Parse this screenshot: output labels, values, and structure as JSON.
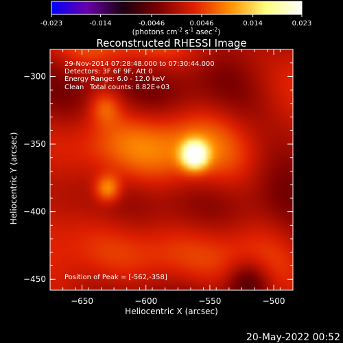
{
  "colorbar": {
    "tick_labels": [
      "-0.023",
      "-0.014",
      "-0.0046",
      "0.0046",
      "0.014",
      "0.023"
    ],
    "tick_values": [
      -0.023,
      -0.014,
      -0.0046,
      0.0046,
      0.014,
      0.023
    ],
    "range": [
      -0.023,
      0.023
    ],
    "units_main": "(photons cm",
    "units_exp1": "-2",
    "units_mid": " s",
    "units_exp2": "-1",
    "units_end": " asec",
    "units_exp3": "-2",
    "units_close": ")",
    "stops": [
      "#0000ff",
      "#6a00a8",
      "#1a0010",
      "#7a0000",
      "#e02000",
      "#ff9000",
      "#ffff80",
      "#ffffff"
    ]
  },
  "plot": {
    "title": "Reconstructed RHESSI Image",
    "xlabel": "Heliocentric X (arcsec)",
    "ylabel": "Heliocentric Y (arcsec)",
    "xlim": [
      -675,
      -485
    ],
    "ylim": [
      -458,
      -280
    ],
    "x_ticks": [
      -650,
      -600,
      -550,
      -500
    ],
    "x_tick_labels": [
      "−650",
      "−600",
      "−550",
      "−500"
    ],
    "y_ticks": [
      -300,
      -350,
      -400,
      -450
    ],
    "y_tick_labels": [
      "−300",
      "−350",
      "−400",
      "−450"
    ]
  },
  "annotations": {
    "time_range": "29-Nov-2014 07:28:48.000 to 07:30:44.000",
    "detectors": "Detectors: 3F 6F 9F, Att 0",
    "energy": "Energy Range: 6.0 - 12.0 keV",
    "method": "Clean",
    "counts": "Total counts: 8.82E+03",
    "peak": "Position of Peak = [-562,-358]"
  },
  "sources": [
    {
      "x": -562,
      "y": -358,
      "amplitude": 1.0,
      "sigma": 7
    },
    {
      "x": -630,
      "y": -383,
      "amplitude": 0.45,
      "sigma": 7
    },
    {
      "x": -632,
      "y": -322,
      "amplitude": 0.3,
      "sigma": 9
    },
    {
      "x": -520,
      "y": -452,
      "amplitude": -0.35,
      "sigma": 12
    }
  ],
  "footer": {
    "date": "20-May-2022 00:52"
  }
}
